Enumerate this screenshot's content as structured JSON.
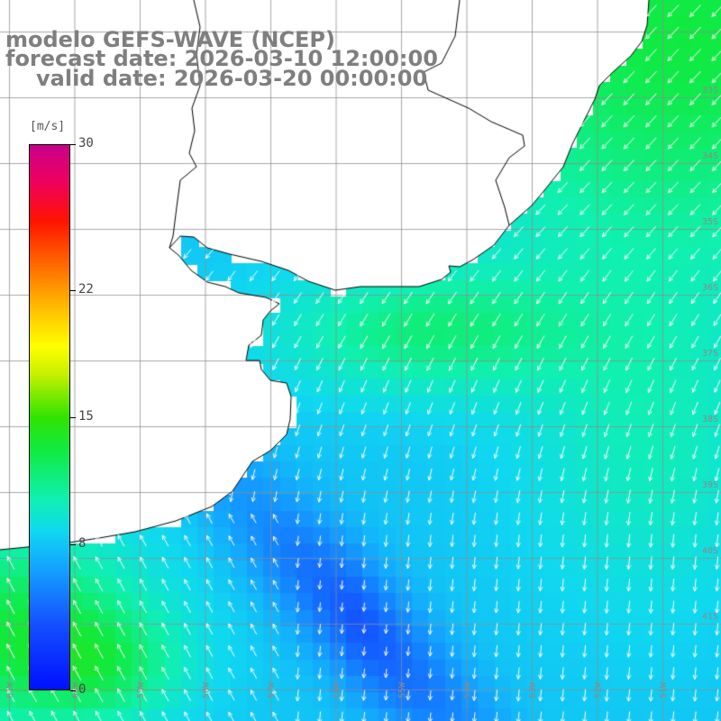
{
  "title": {
    "line1": "modelo GEFS-WAVE (NCEP)",
    "line2": "forecast date: 2026-03-10 12:00:00",
    "line3": "valid date: 2026-03-20 00:00:00"
  },
  "colorbar": {
    "unit": "[m/s]",
    "min": 0,
    "max": 30,
    "ticks": [
      "0",
      "8",
      "15",
      "22",
      "30"
    ],
    "tick_values": [
      0,
      8,
      15,
      22,
      30
    ],
    "stops": [
      "#0010ff",
      "#14a0ff",
      "#10f0b0",
      "#10ea40",
      "#ffff00",
      "#ff6a00",
      "#ff1400",
      "#c8008c"
    ]
  },
  "grid": {
    "lat_labels": [
      "33S",
      "34S",
      "35S",
      "36S",
      "37S",
      "38S",
      "39S",
      "40S",
      "41S"
    ],
    "lon_labels": [
      "61W",
      "60W",
      "59W",
      "58W",
      "57W",
      "56W",
      "55W",
      "54W",
      "53W",
      "52W",
      "51W"
    ]
  },
  "colors": {
    "land": "#ffffff",
    "coast": "#000000",
    "grid": "#9a9a9a",
    "arrows": "#ffffff",
    "title": "#7f7f7f"
  },
  "field": {
    "variable": "wind speed",
    "units": "m/s",
    "direction": "mostly from northeast in north, from north in south"
  }
}
